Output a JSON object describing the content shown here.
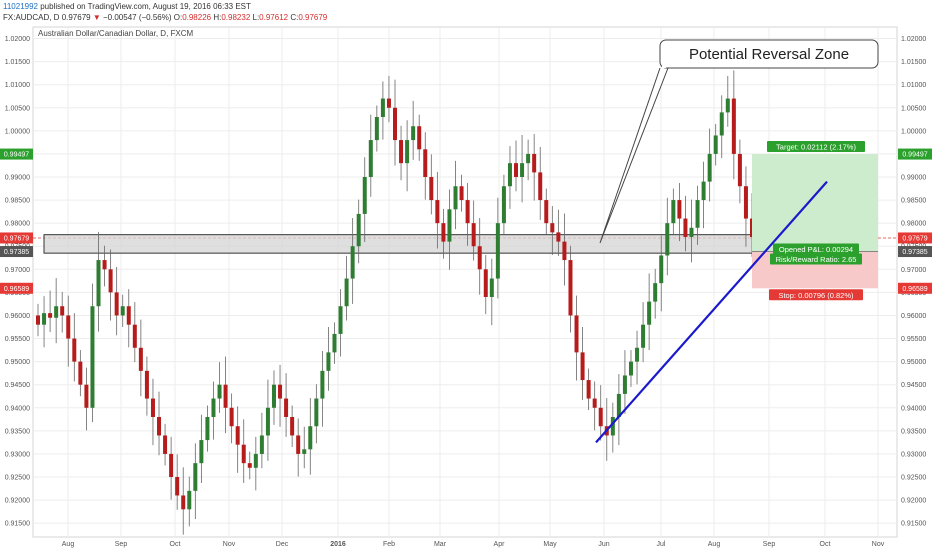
{
  "header": {
    "id": "11021992",
    "published": "published on TradingView.com, August 19, 2016 06:33 EST",
    "symbol": "FX:AUDCAD, D",
    "last": "0.97679",
    "change": "−0.00547 (−0.56%)",
    "o_label": "O:",
    "o": "0.98226",
    "h_label": "H:",
    "h": "0.98232",
    "l_label": "L:",
    "l": "0.97612",
    "c_label": "C:",
    "c": "0.97679"
  },
  "chart_data": {
    "type": "candlestick",
    "title": "Australian Dollar/Canadian Dollar, D, FXCM",
    "x_labels": [
      "Aug",
      "Sep",
      "Oct",
      "Nov",
      "Dec",
      "2016",
      "Feb",
      "Mar",
      "Apr",
      "May",
      "Jun",
      "Jul",
      "Aug",
      "Sep",
      "Oct",
      "Nov"
    ],
    "y_ticks": [
      "1.02000",
      "1.01500",
      "1.01000",
      "1.00500",
      "1.00000",
      "0.99500",
      "0.99000",
      "0.98500",
      "0.98000",
      "0.97500",
      "0.97000",
      "0.96500",
      "0.96000",
      "0.95500",
      "0.95000",
      "0.94500",
      "0.94000",
      "0.93500",
      "0.93000",
      "0.92500",
      "0.92000",
      "0.91500"
    ],
    "ylim": [
      0.912,
      1.0225
    ],
    "price_tags": [
      {
        "value": 0.99497,
        "label": "0.99497",
        "color": "#2ca02c"
      },
      {
        "value": 0.97679,
        "label": "0.97679",
        "color": "#e53935"
      },
      {
        "value": 0.97385,
        "label": "0.97385",
        "color": "#555555"
      },
      {
        "value": 0.96589,
        "label": "0.96589",
        "color": "#e53935"
      }
    ],
    "closes": [
      0.958,
      0.9605,
      0.9595,
      0.962,
      0.96,
      0.955,
      0.95,
      0.945,
      0.94,
      0.962,
      0.972,
      0.97,
      0.965,
      0.96,
      0.962,
      0.958,
      0.953,
      0.948,
      0.942,
      0.938,
      0.934,
      0.93,
      0.925,
      0.921,
      0.918,
      0.922,
      0.928,
      0.933,
      0.938,
      0.942,
      0.945,
      0.94,
      0.936,
      0.932,
      0.928,
      0.927,
      0.93,
      0.934,
      0.94,
      0.945,
      0.942,
      0.938,
      0.934,
      0.93,
      0.931,
      0.936,
      0.942,
      0.948,
      0.952,
      0.956,
      0.962,
      0.968,
      0.975,
      0.982,
      0.99,
      0.998,
      1.003,
      1.007,
      1.005,
      0.998,
      0.993,
      0.998,
      1.001,
      0.996,
      0.99,
      0.985,
      0.98,
      0.976,
      0.983,
      0.988,
      0.985,
      0.98,
      0.975,
      0.97,
      0.964,
      0.968,
      0.98,
      0.988,
      0.993,
      0.99,
      0.993,
      0.995,
      0.991,
      0.985,
      0.98,
      0.978,
      0.976,
      0.972,
      0.96,
      0.952,
      0.946,
      0.942,
      0.94,
      0.936,
      0.934,
      0.938,
      0.943,
      0.947,
      0.95,
      0.953,
      0.958,
      0.963,
      0.967,
      0.973,
      0.98,
      0.985,
      0.981,
      0.977,
      0.979,
      0.985,
      0.989,
      0.995,
      0.999,
      1.004,
      1.007,
      0.995,
      0.988,
      0.981,
      0.977
    ],
    "annotations": {
      "callout_text": "Potential Reversal Zone",
      "target_label": "Target: 0.02112 (2.17%)",
      "pnl_label": "Opened P&L: 0.00294",
      "rr_label": "Risk/Reward Ratio: 2.65",
      "stop_label": "Stop: 0.00796 (0.82%)",
      "zone_top": 0.9775,
      "zone_bottom": 0.9735,
      "position_entry": 0.97385,
      "position_target": 0.99497,
      "position_stop": 0.96589,
      "trendline": [
        [
          0.932,
          "Jun"
        ],
        [
          0.989,
          "Oct"
        ]
      ]
    },
    "colors": {
      "up": "#2e7d32",
      "down": "#b71c1c",
      "trendline": "#1a1acc",
      "target_fill": "#cdeccd",
      "stop_fill": "#f7c9c9"
    }
  }
}
